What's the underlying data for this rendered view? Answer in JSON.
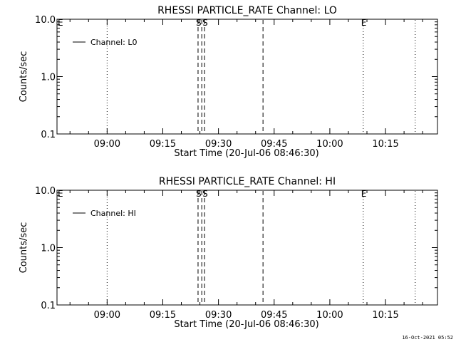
{
  "footer_timestamp": "16-Oct-2021 05:52",
  "chart_data": [
    {
      "type": "line",
      "title": "RHESSI PARTICLE_RATE Channel: LO",
      "xlabel": "Start Time (20-Jul-06 08:46:30)",
      "ylabel": "Counts/sec",
      "y_scale": "log",
      "ylim": [
        0.1,
        10.0
      ],
      "y_ticks": [
        0.1,
        1.0,
        10.0
      ],
      "y_tick_labels": [
        "0.1",
        "1.0",
        "10.0"
      ],
      "xlim": [
        "08:46:30",
        "10:29:00"
      ],
      "x_ticks": [
        "09:00",
        "09:15",
        "09:30",
        "09:45",
        "10:00",
        "10:15"
      ],
      "legend": {
        "position": "top-left",
        "entries": [
          "Channel: L0"
        ]
      },
      "series": [
        {
          "name": "Channel: L0",
          "x": [],
          "y": []
        }
      ],
      "markers": [
        {
          "time": "09:00",
          "style": "dotted",
          "label": ""
        },
        {
          "time": "09:24:30",
          "style": "dashed",
          "label": "S"
        },
        {
          "time": "09:25:30",
          "style": "dashed",
          "label": ""
        },
        {
          "time": "09:26:15",
          "style": "dashed",
          "label": "S"
        },
        {
          "time": "09:42",
          "style": "dashed",
          "label": ""
        },
        {
          "time": "10:09",
          "style": "dotted",
          "label": "E"
        },
        {
          "time": "10:23",
          "style": "dotted",
          "label": ""
        }
      ],
      "corner_labels": [
        {
          "text": "E",
          "position": "top-left"
        }
      ]
    },
    {
      "type": "line",
      "title": "RHESSI PARTICLE_RATE Channel: HI",
      "xlabel": "Start Time (20-Jul-06 08:46:30)",
      "ylabel": "Counts/sec",
      "y_scale": "log",
      "ylim": [
        0.1,
        10.0
      ],
      "y_ticks": [
        0.1,
        1.0,
        10.0
      ],
      "y_tick_labels": [
        "0.1",
        "1.0",
        "10.0"
      ],
      "xlim": [
        "08:46:30",
        "10:29:00"
      ],
      "x_ticks": [
        "09:00",
        "09:15",
        "09:30",
        "09:45",
        "10:00",
        "10:15"
      ],
      "legend": {
        "position": "top-left",
        "entries": [
          "Channel: HI"
        ]
      },
      "series": [
        {
          "name": "Channel: HI",
          "x": [],
          "y": []
        }
      ],
      "markers": [
        {
          "time": "09:00",
          "style": "dotted",
          "label": ""
        },
        {
          "time": "09:24:30",
          "style": "dashed",
          "label": "S"
        },
        {
          "time": "09:25:30",
          "style": "dashed",
          "label": ""
        },
        {
          "time": "09:26:15",
          "style": "dashed",
          "label": "S"
        },
        {
          "time": "09:42",
          "style": "dashed",
          "label": ""
        },
        {
          "time": "10:09",
          "style": "dotted",
          "label": "E"
        },
        {
          "time": "10:23",
          "style": "dotted",
          "label": ""
        }
      ],
      "corner_labels": [
        {
          "text": "E",
          "position": "top-left"
        }
      ]
    }
  ]
}
